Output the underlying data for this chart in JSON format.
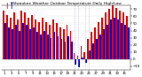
{
  "title": "Milwaukee Weather Outdoor Temperature Daily High/Low",
  "title_fontsize": 3.2,
  "background_color": "#ffffff",
  "plot_bg_color": "#ffffff",
  "highs": [
    68,
    62,
    58,
    65,
    55,
    68,
    65,
    58,
    62,
    55,
    52,
    58,
    52,
    48,
    55,
    50,
    45,
    42,
    48,
    40,
    8,
    5,
    18,
    10,
    28,
    38,
    45,
    52,
    58,
    65,
    70,
    75,
    72,
    68,
    65,
    60
  ],
  "lows": [
    50,
    45,
    42,
    48,
    40,
    50,
    48,
    42,
    45,
    38,
    35,
    40,
    35,
    30,
    38,
    32,
    28,
    25,
    32,
    25,
    -8,
    -12,
    2,
    -5,
    12,
    22,
    28,
    35,
    42,
    48,
    55,
    58,
    55,
    50,
    48,
    44
  ],
  "vlines": [
    20,
    21,
    23,
    24
  ],
  "high_color": "#dd0000",
  "low_color": "#0000cc",
  "vline_color": "#aaaacc",
  "ylim_min": -15,
  "ylim_max": 75,
  "yticks": [
    -10,
    0,
    10,
    20,
    30,
    40,
    50,
    60,
    70
  ],
  "tick_fontsize": 2.8,
  "bar_width": 0.45
}
